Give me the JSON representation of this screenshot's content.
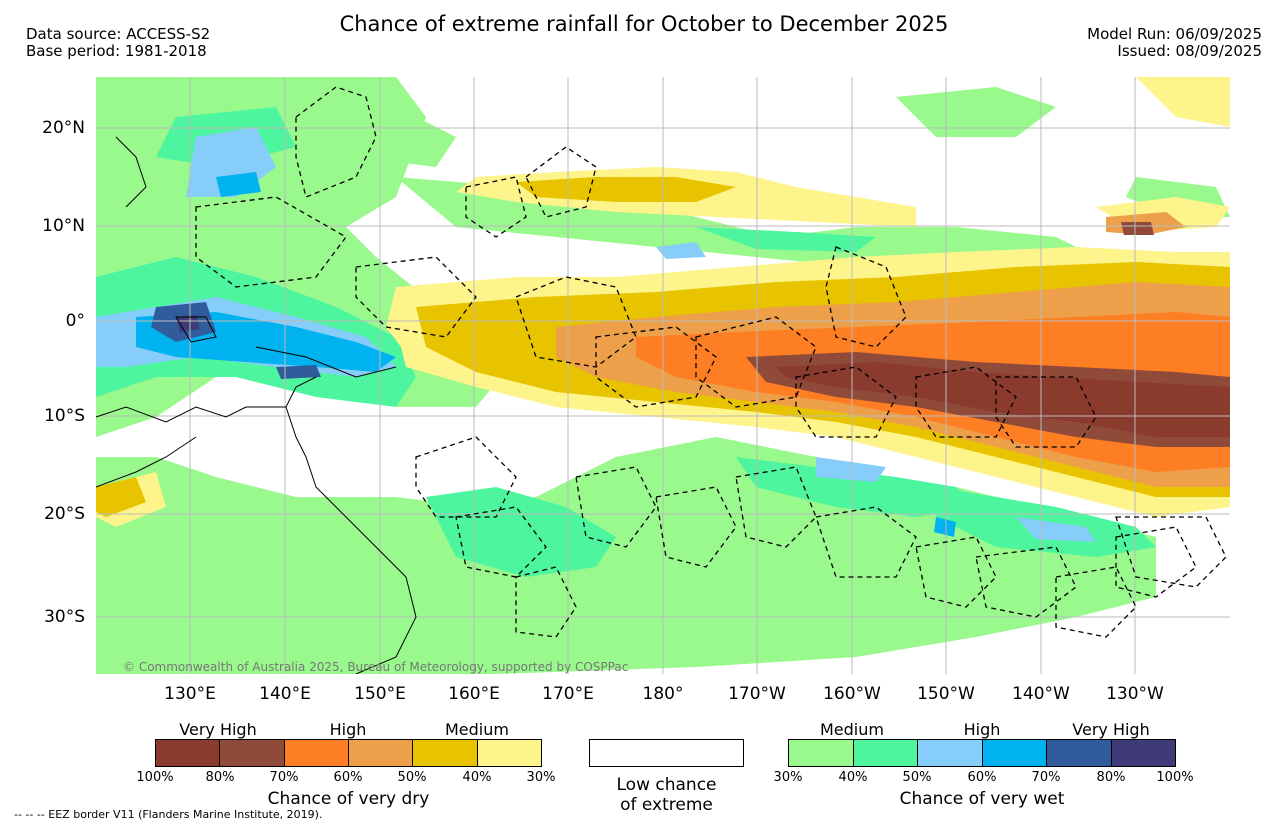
{
  "title": "Chance of extreme rainfall for October to December 2025",
  "header_left": {
    "data_source": "Data source: ACCESS-S2",
    "base_period": "Base period: 1981-2018"
  },
  "header_right": {
    "model_run": "Model Run: 06/09/2025",
    "issued": "Issued: 08/09/2025"
  },
  "map": {
    "lat_labels": [
      "20°N",
      "10°N",
      "0°",
      "10°S",
      "20°S",
      "30°S"
    ],
    "lon_labels": [
      "130°E",
      "140°E",
      "150°E",
      "160°E",
      "170°E",
      "180°",
      "170°W",
      "160°W",
      "150°W",
      "140°W",
      "130°W"
    ],
    "copyright": "© Commonwealth of Australia 2025, Bureau of Meteorology, supported by COSPPac"
  },
  "legend_dry": {
    "headings": [
      "Very High",
      "High",
      "Medium"
    ],
    "colors": [
      "#8b3a2e",
      "#8f4a3a",
      "#fd7e23",
      "#ed9f4a",
      "#e8c400",
      "#fdf48b"
    ],
    "ticks": [
      "100%",
      "80%",
      "70%",
      "60%",
      "50%",
      "40%",
      "30%"
    ],
    "caption": "Chance of very dry"
  },
  "legend_low": {
    "line1": "Low chance",
    "line2": "of extreme"
  },
  "legend_wet": {
    "headings": [
      "Medium",
      "High",
      "Very High"
    ],
    "colors": [
      "#99f98c",
      "#4cf59e",
      "#87cdf9",
      "#00b2ef",
      "#315c9c",
      "#3e3b78"
    ],
    "ticks": [
      "30%",
      "40%",
      "50%",
      "60%",
      "70%",
      "80%",
      "100%"
    ],
    "caption": "Chance of very wet"
  },
  "footnote": "--  --  -- EEZ border V11 (Flanders Marine Institute, 2019).",
  "colors": {
    "map_background": "#ffffff",
    "gridline": "#bbbbbb",
    "eez_border": "#000000"
  }
}
